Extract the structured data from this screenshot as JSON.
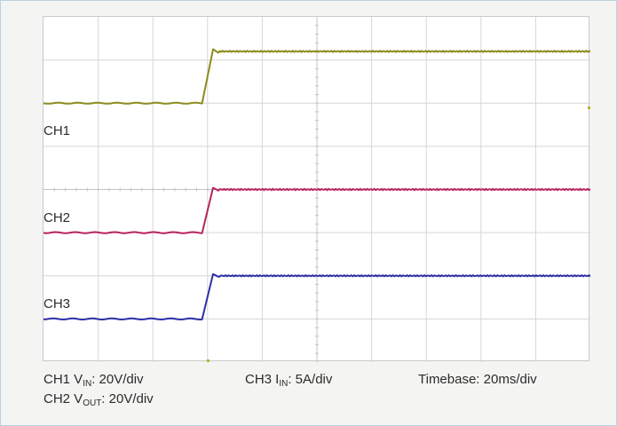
{
  "chart_data": {
    "type": "line",
    "grid": true,
    "divisions": {
      "x": 10,
      "y": 8
    },
    "x_unit": "ms",
    "x_range_ms": [
      0,
      200
    ],
    "series": [
      {
        "name": "CH1",
        "color": "#8c8c1e",
        "low_div": 6.0,
        "high_div": 7.2,
        "rise_start_ms": 58,
        "rise_end_ms": 62,
        "overshoot_div": 0.05
      },
      {
        "name": "CH2",
        "color": "#b8245f",
        "low_div": 3.0,
        "high_div": 4.0,
        "rise_start_ms": 58,
        "rise_end_ms": 62,
        "overshoot_div": 0.04
      },
      {
        "name": "CH3",
        "color": "#2e2ea8",
        "low_div": 1.0,
        "high_div": 2.0,
        "rise_start_ms": 58,
        "rise_end_ms": 62,
        "overshoot_div": 0.04
      }
    ],
    "trace_labels": [
      "CH1",
      "CH2",
      "CH3"
    ]
  },
  "captions": {
    "ch1": {
      "prefix": "CH1 V",
      "sub": "IN",
      "suffix": ":   20V/div"
    },
    "ch2": {
      "prefix": "CH2 V",
      "sub": "OUT",
      "suffix": ": 20V/div"
    },
    "ch3": {
      "prefix": "CH3 I",
      "sub": "IN",
      "suffix": ": 5A/div"
    },
    "timebase": "Timebase: 20ms/div"
  },
  "colors": {
    "grid": "#d6d6d6",
    "axis": "#c4c4c4",
    "marker": "#b5b51e"
  }
}
